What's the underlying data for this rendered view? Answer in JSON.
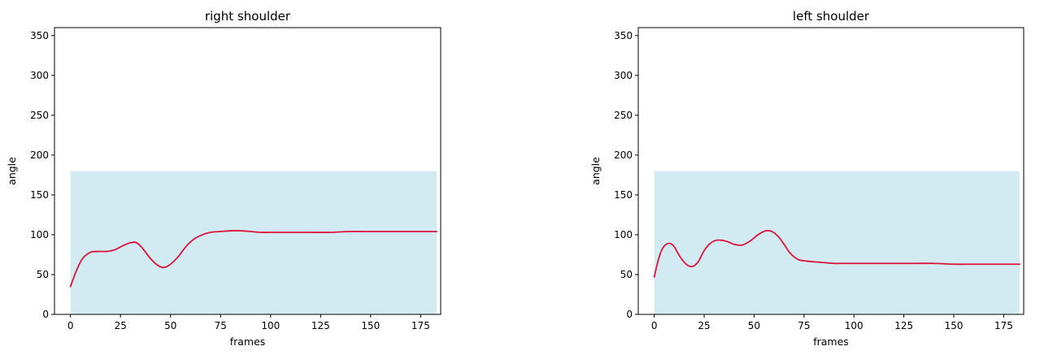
{
  "chart_data": [
    {
      "type": "line",
      "title": "right shoulder",
      "xlabel": "frames",
      "ylabel": "angle",
      "xlim": [
        -8,
        185
      ],
      "ylim": [
        0,
        360
      ],
      "xticks": [
        0,
        25,
        50,
        75,
        100,
        125,
        150,
        175
      ],
      "yticks": [
        0,
        50,
        100,
        150,
        200,
        250,
        300,
        350
      ],
      "grid": false,
      "band": {
        "x": [
          0,
          183
        ],
        "y": [
          0,
          180
        ],
        "color": "#add8e6"
      },
      "series": [
        {
          "color": "#dc143c",
          "x": [
            0,
            3,
            6,
            10,
            14,
            18,
            22,
            26,
            30,
            33,
            36,
            40,
            44,
            47,
            50,
            54,
            58,
            62,
            66,
            70,
            75,
            80,
            85,
            90,
            95,
            100,
            110,
            120,
            130,
            140,
            150,
            160,
            170,
            180,
            183
          ],
          "y": [
            35,
            55,
            70,
            78,
            79,
            79,
            81,
            86,
            90,
            90,
            83,
            70,
            61,
            59,
            63,
            73,
            86,
            95,
            100,
            103,
            104,
            105,
            105,
            104,
            103,
            103,
            103,
            103,
            103,
            104,
            104,
            104,
            104,
            104,
            104
          ]
        }
      ]
    },
    {
      "type": "line",
      "title": "left shoulder",
      "xlabel": "frames",
      "ylabel": "angle",
      "xlim": [
        -8,
        185
      ],
      "ylim": [
        0,
        360
      ],
      "xticks": [
        0,
        25,
        50,
        75,
        100,
        125,
        150,
        175
      ],
      "yticks": [
        0,
        50,
        100,
        150,
        200,
        250,
        300,
        350
      ],
      "grid": false,
      "band": {
        "x": [
          0,
          183
        ],
        "y": [
          0,
          180
        ],
        "color": "#add8e6"
      },
      "series": [
        {
          "color": "#dc143c",
          "x": [
            0,
            2,
            4,
            6,
            8,
            10,
            13,
            16,
            19,
            22,
            25,
            28,
            31,
            34,
            37,
            40,
            44,
            48,
            52,
            56,
            59,
            62,
            65,
            68,
            72,
            76,
            80,
            85,
            90,
            95,
            100,
            110,
            120,
            130,
            140,
            150,
            160,
            170,
            180,
            183
          ],
          "y": [
            47,
            68,
            82,
            88,
            89,
            85,
            72,
            63,
            60,
            66,
            80,
            89,
            93,
            93,
            91,
            88,
            87,
            92,
            100,
            105,
            104,
            98,
            88,
            77,
            69,
            67,
            66,
            65,
            64,
            64,
            64,
            64,
            64,
            64,
            64,
            63,
            63,
            63,
            63,
            63
          ]
        }
      ]
    }
  ]
}
